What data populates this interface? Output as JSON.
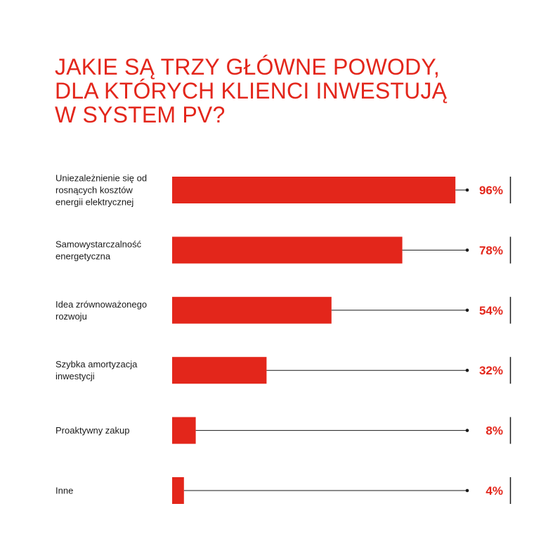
{
  "title_lines": [
    "JAKIE SĄ TRZY GŁÓWNE POWODY,",
    "DLA KTÓRYCH KLIENCI INWESTUJĄ",
    "W SYSTEM PV?"
  ],
  "colors": {
    "accent": "#e3261b",
    "text": "#1a1a1a",
    "line": "#1a1a1a"
  },
  "chart_data": {
    "type": "bar",
    "orientation": "horizontal",
    "title": "JAKIE SĄ TRZY GŁÓWNE POWODY, DLA KTÓRYCH KLIENCI INWESTUJĄ W SYSTEM PV?",
    "unit": "%",
    "xlim": [
      0,
      100
    ],
    "grid": false,
    "legend": "none",
    "categories": [
      [
        "Uniezależnienie się od",
        "rosnących kosztów",
        "energii elektrycznej"
      ],
      [
        "Samowystarczalność",
        "energetyczna"
      ],
      [
        "Idea zrównoważonego",
        "rozwoju"
      ],
      [
        "Szybka amortyzacja",
        "inwestycji"
      ],
      [
        "Proaktywny zakup"
      ],
      [
        "Inne"
      ]
    ],
    "values": [
      96,
      78,
      54,
      32,
      8,
      4
    ],
    "value_labels": [
      "96%",
      "78%",
      "54%",
      "32%",
      "8%",
      "4%"
    ]
  }
}
